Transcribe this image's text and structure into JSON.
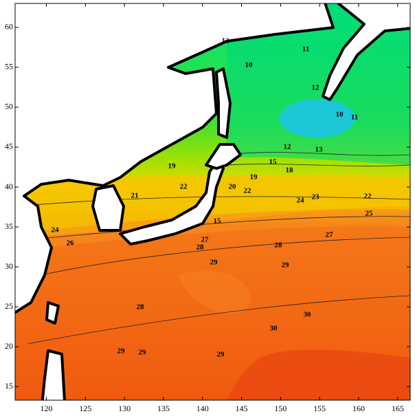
{
  "map": {
    "type": "contour",
    "xlim": [
      116,
      166.6
    ],
    "ylim": [
      13.3,
      63
    ],
    "xticks": [
      120,
      125,
      130,
      135,
      140,
      145,
      150,
      155,
      160,
      165
    ],
    "yticks": [
      15,
      20,
      25,
      30,
      35,
      40,
      45,
      50,
      55,
      60
    ],
    "contour_labels": [
      12,
      11,
      10,
      12,
      10,
      11,
      12,
      13,
      19,
      15,
      18,
      19,
      20,
      22,
      22,
      21,
      24,
      23,
      22,
      25,
      24,
      26,
      27,
      28,
      27,
      28,
      29,
      29,
      28,
      30,
      30,
      29,
      29,
      29,
      15
    ]
  }
}
